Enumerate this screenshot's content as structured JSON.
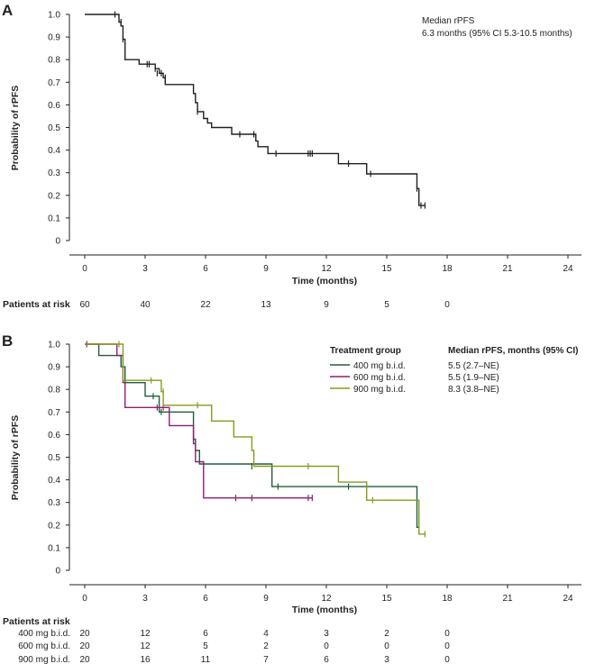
{
  "colors": {
    "overall": "#231f20",
    "g400": "#1f5f3a",
    "g600": "#8e1f6f",
    "g900": "#8a9a1e"
  },
  "chart_data": [
    {
      "type": "line",
      "panel": "A",
      "xlabel": "Time (months)",
      "ylabel": "Probability of rPFS",
      "xlim": [
        0,
        24
      ],
      "ylim": [
        0,
        1.0
      ],
      "xticks": [
        "0",
        "3",
        "6",
        "9",
        "12",
        "15",
        "18",
        "21",
        "24"
      ],
      "yticks": [
        "0",
        "0.1",
        "0.2",
        "0.3",
        "0.4",
        "0.5",
        "0.6",
        "0.7",
        "0.8",
        "0.9",
        "1.0"
      ],
      "annotation": [
        "Median rPFS",
        "6.3 months (95% CI 5.3-10.5 months)"
      ],
      "series": [
        {
          "name": "All patients",
          "color": "#231f20",
          "steps": [
            [
              0,
              1.0
            ],
            [
              1.7,
              0.966
            ],
            [
              1.8,
              0.949
            ],
            [
              1.9,
              0.89
            ],
            [
              2.0,
              0.8
            ],
            [
              2.7,
              0.78
            ],
            [
              3.5,
              0.76
            ],
            [
              3.7,
              0.74
            ],
            [
              3.9,
              0.72
            ],
            [
              4.0,
              0.69
            ],
            [
              5.4,
              0.65
            ],
            [
              5.5,
              0.61
            ],
            [
              5.6,
              0.57
            ],
            [
              5.9,
              0.54
            ],
            [
              6.1,
              0.52
            ],
            [
              6.3,
              0.5
            ],
            [
              7.3,
              0.47
            ],
            [
              8.5,
              0.44
            ],
            [
              8.6,
              0.415
            ],
            [
              9.1,
              0.385
            ],
            [
              12.6,
              0.34
            ],
            [
              14.0,
              0.295
            ],
            [
              16.5,
              0.23
            ],
            [
              16.6,
              0.155
            ],
            [
              16.9,
              0.155
            ]
          ],
          "censored": [
            [
              1.5,
              1.0
            ],
            [
              1.8,
              0.966
            ],
            [
              1.9,
              0.89
            ],
            [
              3.1,
              0.78
            ],
            [
              3.2,
              0.78
            ],
            [
              3.5,
              0.76
            ],
            [
              3.6,
              0.74
            ],
            [
              3.8,
              0.74
            ],
            [
              4.0,
              0.72
            ],
            [
              5.6,
              0.57
            ],
            [
              7.7,
              0.47
            ],
            [
              8.4,
              0.47
            ],
            [
              9.5,
              0.385
            ],
            [
              11.1,
              0.385
            ],
            [
              11.2,
              0.385
            ],
            [
              11.3,
              0.385
            ],
            [
              13.1,
              0.34
            ],
            [
              14.2,
              0.295
            ],
            [
              16.5,
              0.23
            ],
            [
              16.7,
              0.155
            ],
            [
              16.9,
              0.155
            ]
          ]
        }
      ],
      "risk_table": {
        "title": "Patients at risk",
        "rows": [
          {
            "label": "",
            "values": [
              "60",
              "40",
              "22",
              "13",
              "9",
              "5",
              "0"
            ]
          }
        ]
      }
    },
    {
      "type": "line",
      "panel": "B",
      "xlabel": "Time (months)",
      "ylabel": "Probability of rPFS",
      "xlim": [
        0,
        24
      ],
      "ylim": [
        0,
        1.0
      ],
      "xticks": [
        "0",
        "3",
        "6",
        "9",
        "12",
        "15",
        "18",
        "21",
        "24"
      ],
      "yticks": [
        "0",
        "0.1",
        "0.2",
        "0.3",
        "0.4",
        "0.5",
        "0.6",
        "0.7",
        "0.8",
        "0.9",
        "1.0"
      ],
      "legend": {
        "header_group": "Treatment group",
        "header_median": "Median rPFS, months (95% CI)",
        "position": "top-right"
      },
      "series": [
        {
          "name": "400 mg b.i.d.",
          "median": "5.5 (2.7–NE)",
          "color": "#1f5f3a",
          "steps": [
            [
              0,
              1.0
            ],
            [
              0.7,
              0.95
            ],
            [
              1.8,
              0.9
            ],
            [
              2.0,
              0.83
            ],
            [
              3.0,
              0.77
            ],
            [
              3.7,
              0.7
            ],
            [
              5.4,
              0.58
            ],
            [
              5.5,
              0.53
            ],
            [
              5.7,
              0.47
            ],
            [
              9.3,
              0.37
            ],
            [
              16.5,
              0.19
            ],
            [
              16.6,
              0.19
            ]
          ],
          "censored": [
            [
              3.4,
              0.77
            ],
            [
              3.8,
              0.7
            ],
            [
              8.3,
              0.46
            ],
            [
              9.6,
              0.37
            ],
            [
              13.1,
              0.37
            ],
            [
              16.6,
              0.19
            ]
          ]
        },
        {
          "name": "600 mg b.i.d.",
          "median": "5.5 (1.9–NE)",
          "color": "#8e1f6f",
          "steps": [
            [
              0,
              1.0
            ],
            [
              1.6,
              0.95
            ],
            [
              1.9,
              0.83
            ],
            [
              2.0,
              0.72
            ],
            [
              3.6,
              0.72
            ],
            [
              4.2,
              0.64
            ],
            [
              5.4,
              0.56
            ],
            [
              5.5,
              0.48
            ],
            [
              5.9,
              0.32
            ],
            [
              11.3,
              0.32
            ]
          ],
          "censored": [
            [
              0.1,
              1.0
            ],
            [
              3.6,
              0.72
            ],
            [
              3.9,
              0.72
            ],
            [
              7.5,
              0.32
            ],
            [
              8.3,
              0.32
            ],
            [
              11.1,
              0.32
            ],
            [
              11.3,
              0.32
            ]
          ]
        },
        {
          "name": "900 mg b.i.d.",
          "median": "8.3 (3.8–NE)",
          "color": "#8a9a1e",
          "steps": [
            [
              0,
              1.0
            ],
            [
              1.6,
              1.0
            ],
            [
              1.9,
              0.84
            ],
            [
              3.8,
              0.79
            ],
            [
              3.9,
              0.73
            ],
            [
              6.3,
              0.66
            ],
            [
              7.4,
              0.59
            ],
            [
              8.3,
              0.53
            ],
            [
              8.4,
              0.46
            ],
            [
              12.6,
              0.39
            ],
            [
              14.0,
              0.31
            ],
            [
              16.6,
              0.16
            ],
            [
              16.9,
              0.16
            ]
          ],
          "censored": [
            [
              1.7,
              1.0
            ],
            [
              3.3,
              0.84
            ],
            [
              3.9,
              0.79
            ],
            [
              5.6,
              0.73
            ],
            [
              11.1,
              0.46
            ],
            [
              14.3,
              0.31
            ],
            [
              16.9,
              0.16
            ]
          ]
        }
      ],
      "risk_table": {
        "title": "Patients at risk",
        "rows": [
          {
            "label": "400 mg b.i.d.",
            "values": [
              "20",
              "12",
              "6",
              "4",
              "3",
              "2",
              "0"
            ]
          },
          {
            "label": "600 mg b.i.d.",
            "values": [
              "20",
              "12",
              "5",
              "2",
              "0",
              "0",
              "0"
            ]
          },
          {
            "label": "900 mg b.i.d.",
            "values": [
              "20",
              "16",
              "11",
              "7",
              "6",
              "3",
              "0"
            ]
          }
        ]
      }
    }
  ]
}
